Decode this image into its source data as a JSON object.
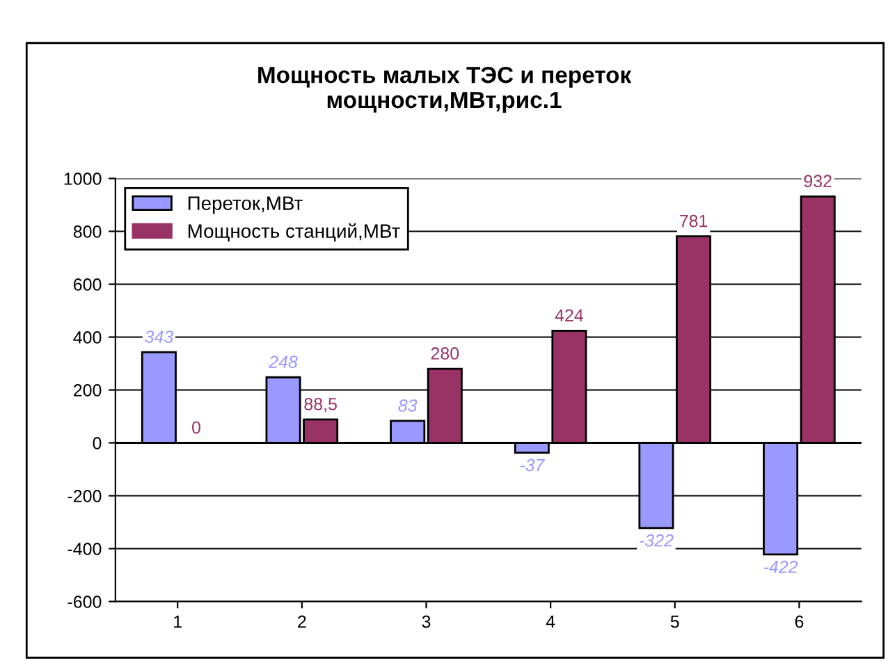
{
  "chart_data": {
    "type": "bar",
    "title": "Мощность малых ТЭС и переток\nмощности,МВт,рис.1",
    "categories": [
      "1",
      "2",
      "3",
      "4",
      "5",
      "6"
    ],
    "series": [
      {
        "name": "Переток,МВт",
        "color": "#9999ff",
        "values": [
          343,
          248,
          83,
          -37,
          -322,
          -422
        ],
        "value_labels": [
          "343",
          "248",
          "83",
          "-37",
          "-322",
          "-422"
        ]
      },
      {
        "name": "Мощность станций,МВт",
        "color": "#993366",
        "values": [
          0,
          88.5,
          280,
          424,
          781,
          932
        ],
        "value_labels": [
          "0",
          "88,5",
          "280",
          "424",
          "781",
          "932"
        ]
      }
    ],
    "ylim": [
      -600,
      1000
    ],
    "yticks": [
      -600,
      -400,
      -200,
      0,
      200,
      400,
      600,
      800,
      1000
    ],
    "grid": "y",
    "legend": "top left"
  }
}
